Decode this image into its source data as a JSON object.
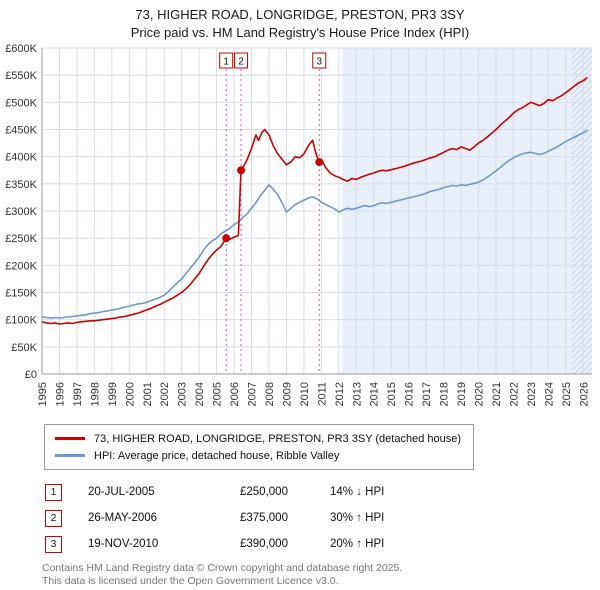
{
  "chart_data": {
    "type": "line",
    "title": "73, HIGHER ROAD, LONGRIDGE, PRESTON, PR3 3SY",
    "subtitle": "Price paid vs. HM Land Registry's House Price Index (HPI)",
    "xlabel": "",
    "ylabel": "",
    "xlim": [
      1995,
      2026.5
    ],
    "ylim": [
      0,
      600
    ],
    "grid": true,
    "legend_position": "below",
    "y_unit_labels_in_thousands_gbp": true,
    "y_ticks": [
      {
        "value": 600,
        "label": "£600K"
      },
      {
        "value": 550,
        "label": "£550K"
      },
      {
        "value": 500,
        "label": "£500K"
      },
      {
        "value": 450,
        "label": "£450K"
      },
      {
        "value": 400,
        "label": "£400K"
      },
      {
        "value": 350,
        "label": "£350K"
      },
      {
        "value": 300,
        "label": "£300K"
      },
      {
        "value": 250,
        "label": "£250K"
      },
      {
        "value": 200,
        "label": "£200K"
      },
      {
        "value": 150,
        "label": "£150K"
      },
      {
        "value": 100,
        "label": "£100K"
      },
      {
        "value": 50,
        "label": "£50K"
      },
      {
        "value": 0,
        "label": "£0"
      }
    ],
    "x_ticks": [
      1995,
      1996,
      1997,
      1998,
      1999,
      2000,
      2001,
      2002,
      2003,
      2004,
      2005,
      2006,
      2007,
      2008,
      2009,
      2010,
      2011,
      2012,
      2013,
      2014,
      2015,
      2016,
      2017,
      2018,
      2019,
      2020,
      2021,
      2022,
      2023,
      2024,
      2025,
      2026
    ],
    "series": [
      {
        "name": "73, HIGHER ROAD, LONGRIDGE, PRESTON, PR3 3SY (detached house)",
        "color": "#cc0000",
        "points": [
          [
            1995.0,
            96
          ],
          [
            1995.25,
            94
          ],
          [
            1995.5,
            93
          ],
          [
            1995.75,
            94
          ],
          [
            1996.0,
            92
          ],
          [
            1996.25,
            93
          ],
          [
            1996.5,
            94
          ],
          [
            1996.75,
            93
          ],
          [
            1997.0,
            95
          ],
          [
            1997.25,
            96
          ],
          [
            1997.5,
            97
          ],
          [
            1997.75,
            98
          ],
          [
            1998.0,
            98
          ],
          [
            1998.25,
            99
          ],
          [
            1998.5,
            100
          ],
          [
            1998.75,
            101
          ],
          [
            1999.0,
            102
          ],
          [
            1999.25,
            103
          ],
          [
            1999.5,
            105
          ],
          [
            1999.75,
            106
          ],
          [
            2000.0,
            108
          ],
          [
            2000.25,
            110
          ],
          [
            2000.5,
            112
          ],
          [
            2000.75,
            115
          ],
          [
            2001.0,
            118
          ],
          [
            2001.25,
            121
          ],
          [
            2001.5,
            125
          ],
          [
            2001.75,
            128
          ],
          [
            2002.0,
            132
          ],
          [
            2002.25,
            136
          ],
          [
            2002.5,
            140
          ],
          [
            2002.75,
            145
          ],
          [
            2003.0,
            150
          ],
          [
            2003.25,
            157
          ],
          [
            2003.5,
            165
          ],
          [
            2003.75,
            175
          ],
          [
            2004.0,
            185
          ],
          [
            2004.25,
            198
          ],
          [
            2004.5,
            210
          ],
          [
            2004.75,
            220
          ],
          [
            2005.0,
            228
          ],
          [
            2005.25,
            235
          ],
          [
            2005.55,
            250
          ],
          [
            2005.75,
            248
          ],
          [
            2006.0,
            252
          ],
          [
            2006.25,
            255
          ],
          [
            2006.4,
            375
          ],
          [
            2006.6,
            385
          ],
          [
            2006.75,
            395
          ],
          [
            2007.0,
            415
          ],
          [
            2007.25,
            440
          ],
          [
            2007.4,
            430
          ],
          [
            2007.6,
            445
          ],
          [
            2007.75,
            450
          ],
          [
            2008.0,
            440
          ],
          [
            2008.25,
            420
          ],
          [
            2008.5,
            405
          ],
          [
            2008.75,
            395
          ],
          [
            2009.0,
            385
          ],
          [
            2009.25,
            390
          ],
          [
            2009.5,
            400
          ],
          [
            2009.75,
            398
          ],
          [
            2010.0,
            405
          ],
          [
            2010.25,
            420
          ],
          [
            2010.5,
            430
          ],
          [
            2010.7,
            405
          ],
          [
            2010.88,
            390
          ],
          [
            2011.0,
            395
          ],
          [
            2011.25,
            380
          ],
          [
            2011.5,
            370
          ],
          [
            2011.75,
            365
          ],
          [
            2012.0,
            362
          ],
          [
            2012.25,
            358
          ],
          [
            2012.5,
            355
          ],
          [
            2012.75,
            360
          ],
          [
            2013.0,
            358
          ],
          [
            2013.25,
            362
          ],
          [
            2013.5,
            365
          ],
          [
            2013.75,
            368
          ],
          [
            2014.0,
            370
          ],
          [
            2014.25,
            373
          ],
          [
            2014.5,
            375
          ],
          [
            2014.75,
            374
          ],
          [
            2015.0,
            376
          ],
          [
            2015.25,
            378
          ],
          [
            2015.5,
            380
          ],
          [
            2015.75,
            382
          ],
          [
            2016.0,
            385
          ],
          [
            2016.25,
            388
          ],
          [
            2016.5,
            390
          ],
          [
            2016.75,
            392
          ],
          [
            2017.0,
            395
          ],
          [
            2017.25,
            398
          ],
          [
            2017.5,
            400
          ],
          [
            2017.75,
            404
          ],
          [
            2018.0,
            408
          ],
          [
            2018.25,
            412
          ],
          [
            2018.5,
            415
          ],
          [
            2018.75,
            413
          ],
          [
            2019.0,
            418
          ],
          [
            2019.25,
            415
          ],
          [
            2019.5,
            412
          ],
          [
            2019.75,
            418
          ],
          [
            2020.0,
            425
          ],
          [
            2020.25,
            430
          ],
          [
            2020.5,
            436
          ],
          [
            2020.75,
            443
          ],
          [
            2021.0,
            450
          ],
          [
            2021.25,
            458
          ],
          [
            2021.5,
            465
          ],
          [
            2021.75,
            472
          ],
          [
            2022.0,
            480
          ],
          [
            2022.25,
            486
          ],
          [
            2022.5,
            490
          ],
          [
            2022.75,
            495
          ],
          [
            2023.0,
            500
          ],
          [
            2023.25,
            497
          ],
          [
            2023.5,
            494
          ],
          [
            2023.75,
            498
          ],
          [
            2024.0,
            505
          ],
          [
            2024.25,
            503
          ],
          [
            2024.5,
            508
          ],
          [
            2024.75,
            512
          ],
          [
            2025.0,
            518
          ],
          [
            2025.25,
            524
          ],
          [
            2025.5,
            530
          ],
          [
            2025.75,
            536
          ],
          [
            2026.0,
            540
          ],
          [
            2026.2,
            545
          ]
        ]
      },
      {
        "name": "HPI: Average price, detached house, Ribble Valley",
        "color": "#6f98c8",
        "points": [
          [
            1995.0,
            105
          ],
          [
            1995.25,
            104
          ],
          [
            1995.5,
            103
          ],
          [
            1995.75,
            104
          ],
          [
            1996.0,
            103
          ],
          [
            1996.25,
            104
          ],
          [
            1996.5,
            105
          ],
          [
            1996.75,
            106
          ],
          [
            1997.0,
            107
          ],
          [
            1997.25,
            108
          ],
          [
            1997.5,
            109
          ],
          [
            1997.75,
            111
          ],
          [
            1998.0,
            112
          ],
          [
            1998.25,
            113
          ],
          [
            1998.5,
            115
          ],
          [
            1998.75,
            116
          ],
          [
            1999.0,
            118
          ],
          [
            1999.25,
            119
          ],
          [
            1999.5,
            121
          ],
          [
            1999.75,
            123
          ],
          [
            2000.0,
            125
          ],
          [
            2000.25,
            127
          ],
          [
            2000.5,
            129
          ],
          [
            2000.75,
            130
          ],
          [
            2001.0,
            132
          ],
          [
            2001.25,
            135
          ],
          [
            2001.5,
            138
          ],
          [
            2001.75,
            141
          ],
          [
            2002.0,
            145
          ],
          [
            2002.25,
            152
          ],
          [
            2002.5,
            160
          ],
          [
            2002.75,
            168
          ],
          [
            2003.0,
            175
          ],
          [
            2003.25,
            185
          ],
          [
            2003.5,
            195
          ],
          [
            2003.75,
            205
          ],
          [
            2004.0,
            215
          ],
          [
            2004.25,
            228
          ],
          [
            2004.5,
            238
          ],
          [
            2004.75,
            245
          ],
          [
            2005.0,
            250
          ],
          [
            2005.25,
            258
          ],
          [
            2005.5,
            263
          ],
          [
            2005.75,
            268
          ],
          [
            2006.0,
            275
          ],
          [
            2006.25,
            280
          ],
          [
            2006.5,
            288
          ],
          [
            2006.75,
            295
          ],
          [
            2007.0,
            305
          ],
          [
            2007.25,
            315
          ],
          [
            2007.5,
            328
          ],
          [
            2007.75,
            338
          ],
          [
            2008.0,
            348
          ],
          [
            2008.25,
            340
          ],
          [
            2008.5,
            330
          ],
          [
            2008.75,
            315
          ],
          [
            2009.0,
            298
          ],
          [
            2009.25,
            305
          ],
          [
            2009.5,
            312
          ],
          [
            2009.75,
            316
          ],
          [
            2010.0,
            320
          ],
          [
            2010.25,
            324
          ],
          [
            2010.5,
            326
          ],
          [
            2010.75,
            322
          ],
          [
            2011.0,
            316
          ],
          [
            2011.25,
            312
          ],
          [
            2011.5,
            308
          ],
          [
            2011.75,
            304
          ],
          [
            2012.0,
            298
          ],
          [
            2012.25,
            302
          ],
          [
            2012.5,
            305
          ],
          [
            2012.75,
            303
          ],
          [
            2013.0,
            305
          ],
          [
            2013.25,
            308
          ],
          [
            2013.5,
            310
          ],
          [
            2013.75,
            308
          ],
          [
            2014.0,
            310
          ],
          [
            2014.25,
            313
          ],
          [
            2014.5,
            315
          ],
          [
            2014.75,
            314
          ],
          [
            2015.0,
            316
          ],
          [
            2015.25,
            318
          ],
          [
            2015.5,
            320
          ],
          [
            2015.75,
            322
          ],
          [
            2016.0,
            324
          ],
          [
            2016.25,
            326
          ],
          [
            2016.5,
            328
          ],
          [
            2016.75,
            330
          ],
          [
            2017.0,
            333
          ],
          [
            2017.25,
            336
          ],
          [
            2017.5,
            338
          ],
          [
            2017.75,
            340
          ],
          [
            2018.0,
            343
          ],
          [
            2018.25,
            345
          ],
          [
            2018.5,
            347
          ],
          [
            2018.75,
            346
          ],
          [
            2019.0,
            348
          ],
          [
            2019.25,
            347
          ],
          [
            2019.5,
            349
          ],
          [
            2019.75,
            351
          ],
          [
            2020.0,
            353
          ],
          [
            2020.25,
            357
          ],
          [
            2020.5,
            362
          ],
          [
            2020.75,
            368
          ],
          [
            2021.0,
            374
          ],
          [
            2021.25,
            380
          ],
          [
            2021.5,
            387
          ],
          [
            2021.75,
            393
          ],
          [
            2022.0,
            398
          ],
          [
            2022.25,
            402
          ],
          [
            2022.5,
            405
          ],
          [
            2022.75,
            407
          ],
          [
            2023.0,
            408
          ],
          [
            2023.25,
            406
          ],
          [
            2023.5,
            404
          ],
          [
            2023.75,
            406
          ],
          [
            2024.0,
            410
          ],
          [
            2024.25,
            414
          ],
          [
            2024.5,
            418
          ],
          [
            2024.75,
            423
          ],
          [
            2025.0,
            428
          ],
          [
            2025.25,
            432
          ],
          [
            2025.5,
            436
          ],
          [
            2025.75,
            440
          ],
          [
            2026.0,
            444
          ],
          [
            2026.2,
            448
          ]
        ]
      }
    ],
    "sales": [
      {
        "label": "1",
        "x": 2005.55,
        "value": 250,
        "line_color": "#cc55cc"
      },
      {
        "label": "2",
        "x": 2006.4,
        "value": 375,
        "line_color": "#cc55cc"
      },
      {
        "label": "3",
        "x": 2010.88,
        "value": 390,
        "line_color": "#e06666"
      }
    ],
    "shaded_from": 2012.2,
    "hatched_from": 2025.33,
    "colors": {
      "grid": "#d7dde8",
      "axis": "#999999",
      "shade": "#e9eff9",
      "hatch": "#c8d4e6",
      "marker": "#cc0000"
    }
  },
  "table": {
    "rows": [
      {
        "num": "1",
        "date": "20-JUL-2005",
        "price": "£250,000",
        "hpi": "14% ↓ HPI"
      },
      {
        "num": "2",
        "date": "26-MAY-2006",
        "price": "£375,000",
        "hpi": "30% ↑ HPI"
      },
      {
        "num": "3",
        "date": "19-NOV-2010",
        "price": "£390,000",
        "hpi": "20% ↑ HPI"
      }
    ]
  },
  "footer": {
    "line1": "Contains HM Land Registry data © Crown copyright and database right 2025.",
    "line2": "This data is licensed under the Open Government Licence v3.0."
  }
}
